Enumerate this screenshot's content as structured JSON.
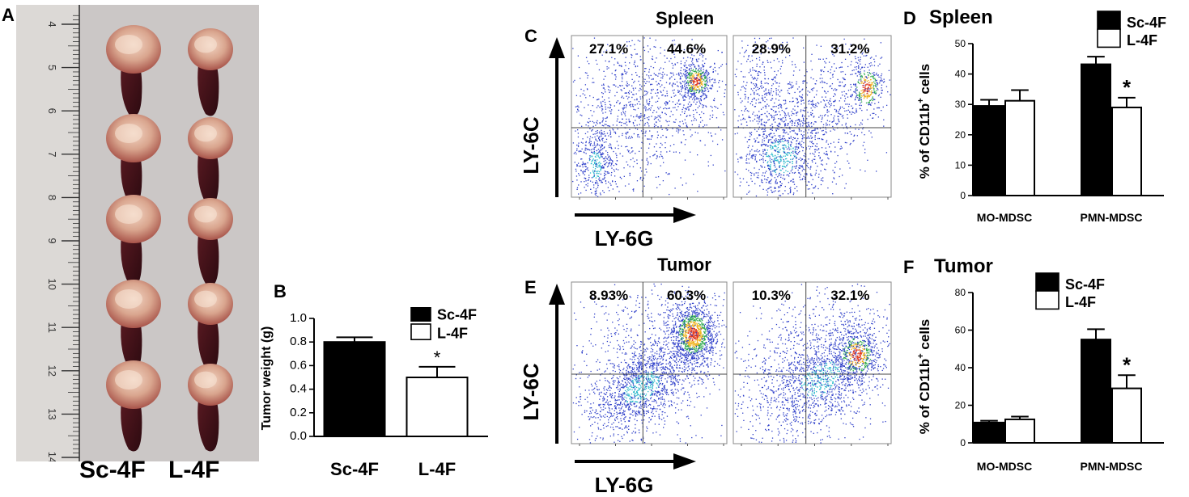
{
  "panels": {
    "A": {
      "letter": "A",
      "ruler_ticks": [
        "4",
        "5",
        "6",
        "7",
        "8",
        "9",
        "10",
        "11",
        "12",
        "13",
        "14"
      ],
      "labels": [
        "Sc-4F",
        "L-4F"
      ]
    },
    "B": {
      "letter": "B",
      "legend": [
        "Sc-4F",
        "L-4F"
      ],
      "significance": "*"
    },
    "C": {
      "letter": "C",
      "title": "Spleen",
      "x_axis": "LY-6G",
      "y_axis": "LY-6C",
      "plots": [
        {
          "upper_left": "27.1%",
          "upper_right": "44.6%"
        },
        {
          "upper_left": "28.9%",
          "upper_right": "31.2%"
        }
      ]
    },
    "D": {
      "letter": "D",
      "title": "Spleen",
      "legend": [
        "Sc-4F",
        "L-4F"
      ],
      "ylabel_main": "% of CD11b",
      "ylabel_sup": "+",
      "ylabel_tail": " cells",
      "significance": "*"
    },
    "E": {
      "letter": "E",
      "title": "Tumor",
      "x_axis": "LY-6G",
      "y_axis": "LY-6C",
      "plots": [
        {
          "upper_left": "8.93%",
          "upper_right": "60.3%"
        },
        {
          "upper_left": "10.3%",
          "upper_right": "32.1%"
        }
      ]
    },
    "F": {
      "letter": "F",
      "title": "Tumor",
      "legend": [
        "Sc-4F",
        "L-4F"
      ],
      "ylabel_main": "% of CD11b",
      "ylabel_sup": "+",
      "ylabel_tail": " cells",
      "significance": "*"
    }
  },
  "chart_data": [
    {
      "id": "B",
      "type": "bar",
      "categories": [
        "Sc-4F",
        "L-4F"
      ],
      "values": [
        0.8,
        0.5
      ],
      "errors": [
        0.04,
        0.09
      ],
      "colors": [
        "#000000",
        "#ffffff"
      ],
      "ylabel": "Tumor weight (g)",
      "ylim": [
        0,
        1.0
      ],
      "yticks": [
        "0.0",
        "0.2",
        "0.4",
        "0.6",
        "0.8",
        "1.0"
      ],
      "legend_position": "top-right"
    },
    {
      "id": "D",
      "type": "bar",
      "categories": [
        "MO-MDSC",
        "PMN-MDSC"
      ],
      "series": [
        {
          "name": "Sc-4F",
          "values": [
            29.5,
            43.2
          ],
          "errors": [
            2.0,
            2.5
          ],
          "color": "#000000"
        },
        {
          "name": "L-4F",
          "values": [
            31.2,
            29.0
          ],
          "errors": [
            3.5,
            3.2
          ],
          "color": "#ffffff"
        }
      ],
      "ylim": [
        0,
        50
      ],
      "yticks": [
        "0",
        "10",
        "20",
        "30",
        "40",
        "50"
      ],
      "legend_position": "top-right"
    },
    {
      "id": "F",
      "type": "bar",
      "categories": [
        "MO-MDSC",
        "PMN-MDSC"
      ],
      "series": [
        {
          "name": "Sc-4F",
          "values": [
            10.8,
            55.0
          ],
          "errors": [
            1.0,
            5.5
          ],
          "color": "#000000"
        },
        {
          "name": "L-4F",
          "values": [
            12.5,
            29.0
          ],
          "errors": [
            1.5,
            7.0
          ],
          "color": "#ffffff"
        }
      ],
      "ylim": [
        0,
        80
      ],
      "yticks": [
        "0",
        "20",
        "40",
        "60",
        "80"
      ],
      "legend_position": "top-center"
    }
  ]
}
